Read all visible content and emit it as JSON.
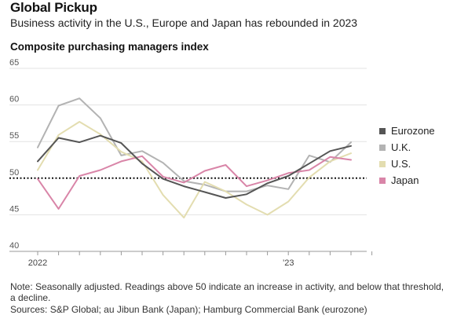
{
  "header": {
    "title": "Global Pickup",
    "subtitle": "Business activity in the U.S., Europe and Japan has rebounded in 2023",
    "chart_heading": "Composite purchasing managers index"
  },
  "footer": {
    "note": "Note: Seasonally adjusted. Readings above 50 indicate an increase in activity, and below that threshold, a decline.",
    "sources": "Sources: S&P Global; au Jibun Bank (Japan); Hamburg Commercial Bank (eurozone)"
  },
  "chart_data": {
    "type": "line",
    "title": "Composite purchasing managers index",
    "xlabel": "",
    "ylabel": "",
    "ylim": [
      40,
      65
    ],
    "yticks": [
      40,
      45,
      50,
      55,
      60,
      65
    ],
    "x": [
      "2022-01",
      "2022-02",
      "2022-03",
      "2022-04",
      "2022-05",
      "2022-06",
      "2022-07",
      "2022-08",
      "2022-09",
      "2022-10",
      "2022-11",
      "2022-12",
      "2023-01",
      "2023-02",
      "2023-03",
      "2023-04",
      "2023-05"
    ],
    "xtick_labels": [
      {
        "at": "2022-01",
        "label": "2022"
      },
      {
        "at": "2023-01",
        "label": "’23"
      }
    ],
    "reference_line": 50,
    "legend_position": "right",
    "grid": "horizontal",
    "series": [
      {
        "name": "Eurozone",
        "color": "#555555",
        "values": [
          52.3,
          55.5,
          54.9,
          55.8,
          54.8,
          52.0,
          49.9,
          48.9,
          48.1,
          47.3,
          47.8,
          49.3,
          50.3,
          52.0,
          53.7,
          54.4,
          null
        ]
      },
      {
        "name": "U.K.",
        "color": "#b3b3b3",
        "values": [
          54.2,
          59.9,
          60.9,
          58.2,
          53.1,
          53.7,
          52.1,
          49.6,
          49.1,
          48.2,
          48.2,
          49.0,
          48.5,
          53.1,
          52.2,
          54.9,
          null
        ]
      },
      {
        "name": "U.S.",
        "color": "#e3ddb0",
        "values": [
          51.1,
          55.9,
          57.7,
          56.0,
          53.6,
          52.3,
          47.7,
          44.6,
          49.5,
          48.2,
          46.4,
          45.0,
          46.8,
          50.1,
          52.3,
          53.4,
          null
        ]
      },
      {
        "name": "Japan",
        "color": "#d985a8",
        "values": [
          49.9,
          45.8,
          50.3,
          51.1,
          52.3,
          53.0,
          50.2,
          49.4,
          51.0,
          51.8,
          48.9,
          49.7,
          50.7,
          51.1,
          52.9,
          52.5,
          null
        ]
      }
    ]
  }
}
